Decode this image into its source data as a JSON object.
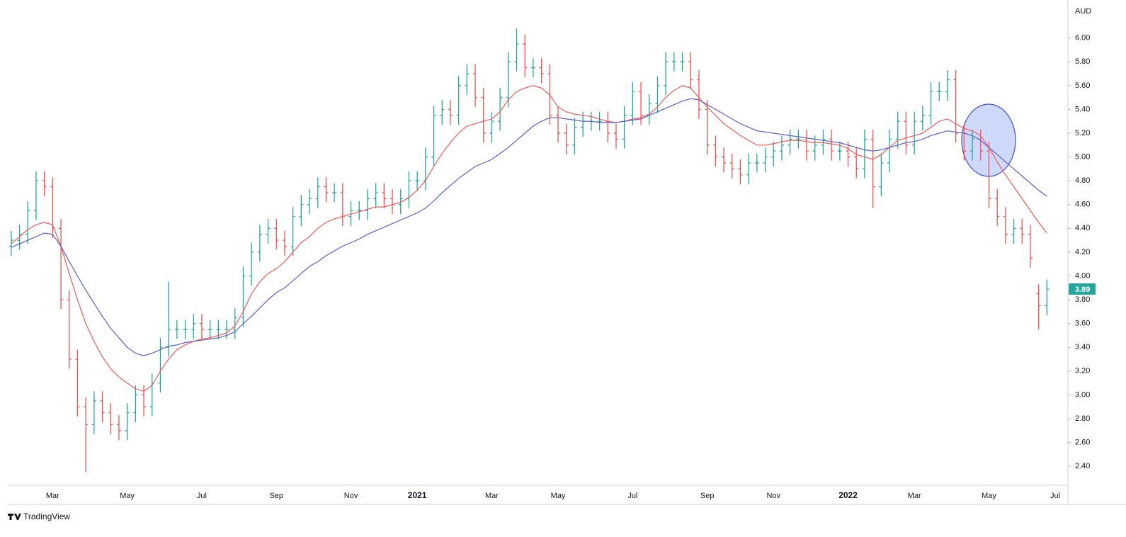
{
  "chart_data": {
    "type": "ohlc",
    "currency_label": "AUD",
    "brand": "TradingView",
    "up_color": "#26a69a",
    "down_color": "#ef5350",
    "ylim": [
      2.24,
      6.29
    ],
    "yticks": [
      {
        "value": 2.4,
        "label": "2.40"
      },
      {
        "value": 2.6,
        "label": "2.60"
      },
      {
        "value": 2.8,
        "label": "2.80"
      },
      {
        "value": 3,
        "label": "3.00"
      },
      {
        "value": 3.2,
        "label": "3.20"
      },
      {
        "value": 3.4,
        "label": "3.40"
      },
      {
        "value": 3.6,
        "label": "3.60"
      },
      {
        "value": 3.8,
        "label": "3.80"
      },
      {
        "value": 4,
        "label": "4.00"
      },
      {
        "value": 4.2,
        "label": "4.20"
      },
      {
        "value": 4.4,
        "label": "4.40"
      },
      {
        "value": 4.6,
        "label": "4.60"
      },
      {
        "value": 4.8,
        "label": "4.80"
      },
      {
        "value": 5,
        "label": "5.00"
      },
      {
        "value": 5.2,
        "label": "5.20"
      },
      {
        "value": 5.4,
        "label": "5.40"
      },
      {
        "value": 5.6,
        "label": "5.60"
      },
      {
        "value": 5.8,
        "label": "5.80"
      },
      {
        "value": 6,
        "label": "6.00"
      }
    ],
    "categories": [
      null,
      null,
      null,
      null,
      null,
      "Mar",
      null,
      null,
      null,
      null,
      null,
      null,
      null,
      null,
      "May",
      null,
      null,
      null,
      null,
      null,
      null,
      null,
      null,
      "Jul",
      null,
      null,
      null,
      null,
      null,
      null,
      null,
      null,
      "Sep",
      null,
      null,
      null,
      null,
      null,
      null,
      null,
      null,
      "Nov",
      null,
      null,
      null,
      null,
      null,
      null,
      null,
      "2021",
      null,
      null,
      null,
      null,
      null,
      null,
      null,
      null,
      "Mar",
      null,
      null,
      null,
      null,
      null,
      null,
      null,
      "May",
      null,
      null,
      null,
      null,
      null,
      null,
      null,
      null,
      "Jul",
      null,
      null,
      null,
      null,
      null,
      null,
      null,
      null,
      "Sep",
      null,
      null,
      null,
      null,
      null,
      null,
      null,
      "Nov",
      null,
      null,
      null,
      null,
      null,
      null,
      null,
      null,
      "2022",
      null,
      null,
      null,
      null,
      null,
      null,
      null,
      "Mar",
      null,
      null,
      null,
      null,
      null,
      null,
      null,
      null,
      "May",
      null,
      null,
      null,
      null,
      null,
      null,
      null,
      "Jul"
    ],
    "open": [
      4.25,
      4.3,
      4.35,
      4.55,
      4.8,
      4.75,
      4.4,
      3.8,
      3.3,
      2.9,
      2.75,
      2.95,
      2.85,
      2.75,
      2.7,
      2.85,
      3.0,
      2.9,
      3.1,
      3.4,
      3.55,
      3.55,
      3.55,
      3.6,
      3.55,
      3.55,
      3.55,
      3.55,
      3.65,
      4.0,
      4.2,
      4.35,
      4.4,
      4.3,
      4.25,
      4.5,
      4.6,
      4.65,
      4.75,
      4.7,
      4.7,
      4.5,
      4.55,
      4.55,
      4.65,
      4.7,
      4.65,
      4.6,
      4.65,
      4.8,
      4.8,
      5.0,
      5.35,
      5.4,
      5.35,
      5.6,
      5.7,
      5.5,
      5.2,
      5.3,
      5.5,
      5.8,
      5.95,
      5.75,
      5.75,
      5.7,
      5.35,
      5.2,
      5.1,
      5.25,
      5.3,
      5.3,
      5.3,
      5.2,
      5.15,
      5.35,
      5.55,
      5.35,
      5.45,
      5.6,
      5.8,
      5.8,
      5.8,
      5.65,
      5.4,
      5.1,
      5.0,
      4.95,
      4.9,
      4.85,
      4.95,
      4.95,
      5.0,
      5.05,
      5.1,
      5.15,
      5.15,
      5.05,
      5.1,
      5.15,
      5.05,
      5.05,
      5.0,
      4.9,
      5.15,
      4.75,
      4.95,
      5.15,
      5.3,
      5.1,
      5.3,
      5.35,
      5.55,
      5.55,
      5.65,
      5.2,
      5.05,
      5.15,
      5.05,
      4.65,
      4.5,
      4.35,
      4.4,
      4.35,
      3.85,
      3.75,
      null
    ],
    "high": [
      4.38,
      4.43,
      4.63,
      4.88,
      4.88,
      4.83,
      4.48,
      3.88,
      3.38,
      2.98,
      3.03,
      3.03,
      2.93,
      2.83,
      2.93,
      3.08,
      3.08,
      3.18,
      3.48,
      3.95,
      3.63,
      3.63,
      3.68,
      3.68,
      3.63,
      3.63,
      3.63,
      3.73,
      4.08,
      4.28,
      4.43,
      4.48,
      4.48,
      4.38,
      4.58,
      4.68,
      4.73,
      4.83,
      4.83,
      4.78,
      4.78,
      4.63,
      4.63,
      4.73,
      4.78,
      4.78,
      4.73,
      4.73,
      4.88,
      4.88,
      5.08,
      5.43,
      5.48,
      5.48,
      5.68,
      5.78,
      5.78,
      5.58,
      5.38,
      5.58,
      5.88,
      6.08,
      6.03,
      5.83,
      5.83,
      5.78,
      5.43,
      5.28,
      5.33,
      5.38,
      5.38,
      5.38,
      5.38,
      5.28,
      5.43,
      5.63,
      5.63,
      5.53,
      5.68,
      5.88,
      5.88,
      5.88,
      5.88,
      5.73,
      5.48,
      5.18,
      5.08,
      5.03,
      4.98,
      5.03,
      5.03,
      5.08,
      5.13,
      5.18,
      5.23,
      5.23,
      5.23,
      5.18,
      5.23,
      5.23,
      5.13,
      5.13,
      5.08,
      5.23,
      5.23,
      5.03,
      5.23,
      5.38,
      5.38,
      5.38,
      5.43,
      5.63,
      5.63,
      5.73,
      5.73,
      5.28,
      5.23,
      5.23,
      5.13,
      4.73,
      4.58,
      4.48,
      4.48,
      4.43,
      3.93,
      3.97,
      null
    ],
    "low": [
      4.17,
      4.22,
      4.27,
      4.47,
      4.67,
      4.32,
      3.72,
      3.22,
      2.82,
      2.35,
      2.67,
      2.77,
      2.67,
      2.62,
      2.62,
      2.77,
      2.82,
      2.82,
      3.02,
      3.32,
      3.47,
      3.47,
      3.47,
      3.47,
      3.47,
      3.47,
      3.47,
      3.47,
      3.57,
      3.92,
      4.12,
      4.27,
      4.22,
      4.17,
      4.17,
      4.42,
      4.52,
      4.57,
      4.62,
      4.62,
      4.42,
      4.42,
      4.47,
      4.47,
      4.57,
      4.57,
      4.52,
      4.52,
      4.57,
      4.72,
      4.72,
      4.92,
      5.27,
      5.27,
      5.27,
      5.52,
      5.42,
      5.12,
      5.12,
      5.22,
      5.42,
      5.72,
      5.67,
      5.67,
      5.62,
      5.27,
      5.12,
      5.02,
      5.02,
      5.17,
      5.22,
      5.22,
      5.12,
      5.07,
      5.07,
      5.27,
      5.27,
      5.27,
      5.37,
      5.52,
      5.72,
      5.72,
      5.57,
      5.32,
      5.02,
      4.92,
      4.87,
      4.82,
      4.77,
      4.77,
      4.87,
      4.87,
      4.92,
      4.97,
      5.02,
      5.07,
      4.97,
      4.97,
      5.02,
      4.97,
      4.97,
      4.92,
      4.82,
      4.82,
      4.57,
      4.67,
      4.87,
      5.07,
      5.02,
      5.02,
      5.22,
      5.27,
      5.47,
      5.47,
      5.12,
      4.97,
      4.97,
      4.97,
      4.57,
      4.42,
      4.27,
      4.27,
      4.27,
      4.07,
      3.55,
      3.67,
      null
    ],
    "close": [
      4.3,
      4.35,
      4.55,
      4.8,
      4.75,
      4.4,
      3.8,
      3.3,
      2.9,
      2.75,
      2.95,
      2.85,
      2.75,
      2.7,
      2.85,
      3.0,
      2.9,
      3.1,
      3.4,
      3.55,
      3.55,
      3.55,
      3.6,
      3.55,
      3.55,
      3.55,
      3.55,
      3.65,
      4.0,
      4.2,
      4.35,
      4.4,
      4.3,
      4.25,
      4.5,
      4.6,
      4.65,
      4.75,
      4.7,
      4.7,
      4.5,
      4.55,
      4.55,
      4.65,
      4.7,
      4.65,
      4.6,
      4.65,
      4.8,
      4.8,
      5.0,
      5.35,
      5.4,
      5.35,
      5.6,
      5.7,
      5.5,
      5.2,
      5.3,
      5.5,
      5.8,
      5.95,
      5.75,
      5.75,
      5.7,
      5.35,
      5.2,
      5.1,
      5.25,
      5.3,
      5.3,
      5.3,
      5.2,
      5.15,
      5.35,
      5.55,
      5.35,
      5.45,
      5.6,
      5.8,
      5.8,
      5.8,
      5.65,
      5.4,
      5.1,
      5.0,
      4.95,
      4.9,
      4.85,
      4.95,
      4.95,
      5.0,
      5.05,
      5.1,
      5.15,
      5.15,
      5.05,
      5.1,
      5.15,
      5.05,
      5.05,
      5.0,
      4.9,
      5.15,
      4.75,
      4.95,
      5.15,
      5.3,
      5.1,
      5.3,
      5.35,
      5.55,
      5.55,
      5.65,
      5.2,
      5.05,
      5.15,
      5.05,
      4.65,
      4.5,
      4.35,
      4.4,
      4.35,
      4.15,
      3.75,
      3.89,
      null
    ],
    "series": [
      {
        "color": "#f05a5a",
        "values": [
          4.27,
          4.33,
          4.39,
          4.43,
          4.45,
          4.43,
          4.25,
          4.02,
          3.8,
          3.6,
          3.45,
          3.32,
          3.22,
          3.15,
          3.1,
          3.05,
          3.03,
          3.08,
          3.2,
          3.3,
          3.38,
          3.42,
          3.45,
          3.47,
          3.48,
          3.5,
          3.52,
          3.58,
          3.7,
          3.85,
          3.95,
          4.02,
          4.06,
          4.12,
          4.2,
          4.28,
          4.33,
          4.4,
          4.45,
          4.48,
          4.5,
          4.52,
          4.54,
          4.56,
          4.58,
          4.58,
          4.6,
          4.62,
          4.66,
          4.72,
          4.8,
          4.92,
          5.03,
          5.12,
          5.2,
          5.26,
          5.28,
          5.3,
          5.32,
          5.38,
          5.48,
          5.55,
          5.58,
          5.6,
          5.58,
          5.52,
          5.42,
          5.38,
          5.36,
          5.35,
          5.34,
          5.32,
          5.3,
          5.29,
          5.3,
          5.32,
          5.33,
          5.36,
          5.42,
          5.5,
          5.56,
          5.6,
          5.58,
          5.5,
          5.42,
          5.35,
          5.28,
          5.23,
          5.18,
          5.14,
          5.1,
          5.1,
          5.11,
          5.13,
          5.14,
          5.14,
          5.13,
          5.12,
          5.12,
          5.11,
          5.1,
          5.07,
          5.02,
          5.0,
          4.98,
          5.02,
          5.08,
          5.14,
          5.16,
          5.18,
          5.2,
          5.25,
          5.3,
          5.32,
          5.28,
          5.24,
          5.22,
          5.18,
          5.08,
          4.96,
          4.85,
          4.75,
          4.65,
          4.55,
          4.45,
          4.36,
          null
        ]
      },
      {
        "color": "#5b5fc7",
        "values": [
          4.24,
          4.27,
          4.3,
          4.33,
          4.36,
          4.35,
          4.25,
          4.12,
          4.0,
          3.88,
          3.77,
          3.66,
          3.56,
          3.48,
          3.4,
          3.35,
          3.33,
          3.35,
          3.38,
          3.41,
          3.42,
          3.44,
          3.45,
          3.46,
          3.47,
          3.48,
          3.5,
          3.53,
          3.6,
          3.66,
          3.73,
          3.8,
          3.86,
          3.9,
          3.96,
          4.02,
          4.08,
          4.12,
          4.17,
          4.21,
          4.25,
          4.28,
          4.31,
          4.35,
          4.38,
          4.41,
          4.44,
          4.47,
          4.5,
          4.53,
          4.57,
          4.63,
          4.7,
          4.76,
          4.82,
          4.87,
          4.92,
          4.95,
          4.98,
          5.03,
          5.08,
          5.14,
          5.2,
          5.26,
          5.3,
          5.33,
          5.33,
          5.32,
          5.31,
          5.3,
          5.3,
          5.29,
          5.29,
          5.29,
          5.3,
          5.31,
          5.32,
          5.35,
          5.38,
          5.41,
          5.44,
          5.47,
          5.49,
          5.48,
          5.44,
          5.4,
          5.36,
          5.32,
          5.28,
          5.25,
          5.22,
          5.21,
          5.2,
          5.19,
          5.18,
          5.17,
          5.16,
          5.15,
          5.14,
          5.13,
          5.12,
          5.1,
          5.08,
          5.06,
          5.05,
          5.06,
          5.08,
          5.1,
          5.12,
          5.13,
          5.15,
          5.18,
          5.2,
          5.22,
          5.21,
          5.2,
          5.18,
          5.14,
          5.08,
          5.02,
          4.96,
          4.9,
          4.84,
          4.78,
          4.72,
          4.67,
          null
        ]
      }
    ]
  }
}
